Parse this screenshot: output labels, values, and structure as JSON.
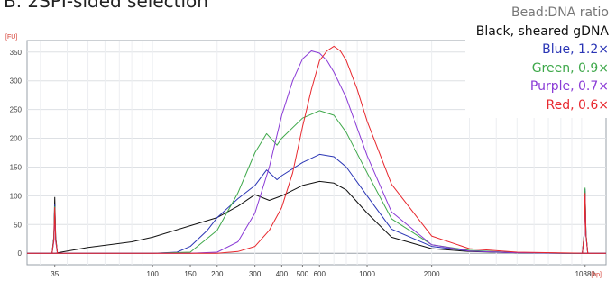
{
  "panel_title": "B. 2SPI-sided selection",
  "legend": {
    "heading": "Bead:DNA ratio",
    "entries": [
      {
        "label": "Black, sheared gDNA",
        "color": "#111111"
      },
      {
        "label": "Blue, 1.2×",
        "color": "#2a35b5"
      },
      {
        "label": "Green, 0.9×",
        "color": "#3ea84a"
      },
      {
        "label": "Purple, 0.7×",
        "color": "#8a3ad6"
      },
      {
        "label": "Red, 0.6×",
        "color": "#e8282e"
      }
    ]
  },
  "chart_data": {
    "type": "line",
    "title": "",
    "ylabel": "[FU]",
    "xlabel": "[bp]",
    "xscale": "log",
    "xlim": [
      26,
      13000
    ],
    "ylim": [
      -20,
      370
    ],
    "yticks": [
      0,
      50,
      100,
      150,
      200,
      250,
      300,
      350
    ],
    "xticks": [
      {
        "value": 35,
        "label": "35"
      },
      {
        "value": 100,
        "label": "100"
      },
      {
        "value": 150,
        "label": "150"
      },
      {
        "value": 200,
        "label": "200"
      },
      {
        "value": 300,
        "label": "300"
      },
      {
        "value": 400,
        "label": "400"
      },
      {
        "value": 500,
        "label": "500"
      },
      {
        "value": 600,
        "label": "600"
      },
      {
        "value": 1000,
        "label": "1000"
      },
      {
        "value": 2000,
        "label": "2000"
      },
      {
        "value": 10380,
        "label": "10380"
      }
    ],
    "grid": true,
    "legend_position": "top-right",
    "markers": [
      35,
      10380
    ],
    "series": [
      {
        "name": "Black, sheared gDNA",
        "color": "#111111",
        "x": [
          26,
          35,
          50,
          80,
          100,
          150,
          200,
          250,
          300,
          350,
          400,
          500,
          600,
          700,
          800,
          1000,
          1300,
          2000,
          3000,
          5000,
          8000,
          10380,
          13000
        ],
        "y": [
          0,
          0,
          10,
          20,
          28,
          48,
          62,
          82,
          102,
          92,
          100,
          118,
          125,
          122,
          110,
          70,
          28,
          8,
          3,
          1,
          0,
          0,
          0
        ]
      },
      {
        "name": "Blue, 1.2×",
        "color": "#2a35b5",
        "x": [
          26,
          35,
          100,
          130,
          150,
          180,
          200,
          250,
          300,
          340,
          380,
          400,
          500,
          600,
          700,
          800,
          1000,
          1300,
          2000,
          3000,
          5000,
          10380,
          13000
        ],
        "y": [
          0,
          0,
          0,
          2,
          12,
          40,
          62,
          95,
          118,
          145,
          128,
          135,
          158,
          172,
          168,
          150,
          100,
          42,
          12,
          4,
          1,
          0,
          0
        ]
      },
      {
        "name": "Green, 0.9×",
        "color": "#3ea84a",
        "x": [
          26,
          35,
          100,
          150,
          200,
          250,
          300,
          340,
          380,
          400,
          500,
          600,
          700,
          800,
          1000,
          1300,
          2000,
          3000,
          5000,
          10380,
          13000
        ],
        "y": [
          0,
          0,
          0,
          2,
          40,
          105,
          175,
          208,
          188,
          200,
          235,
          248,
          240,
          210,
          140,
          60,
          15,
          5,
          1,
          0,
          0
        ]
      },
      {
        "name": "Purple, 0.7×",
        "color": "#8a3ad6",
        "x": [
          26,
          35,
          100,
          150,
          200,
          250,
          300,
          350,
          400,
          450,
          500,
          550,
          600,
          650,
          700,
          800,
          1000,
          1300,
          2000,
          3000,
          5000,
          10380,
          13000
        ],
        "y": [
          0,
          0,
          0,
          0,
          2,
          20,
          70,
          150,
          240,
          300,
          338,
          352,
          348,
          335,
          315,
          270,
          170,
          72,
          15,
          4,
          1,
          0,
          0
        ]
      },
      {
        "name": "Red, 0.6×",
        "color": "#e8282e",
        "x": [
          26,
          35,
          100,
          150,
          200,
          250,
          300,
          350,
          400,
          450,
          500,
          550,
          600,
          650,
          700,
          750,
          800,
          900,
          1000,
          1300,
          2000,
          3000,
          5000,
          10380,
          13000
        ],
        "y": [
          0,
          0,
          0,
          0,
          0,
          3,
          12,
          40,
          80,
          140,
          220,
          285,
          335,
          352,
          360,
          352,
          335,
          285,
          230,
          120,
          30,
          8,
          2,
          0,
          0
        ]
      }
    ]
  }
}
